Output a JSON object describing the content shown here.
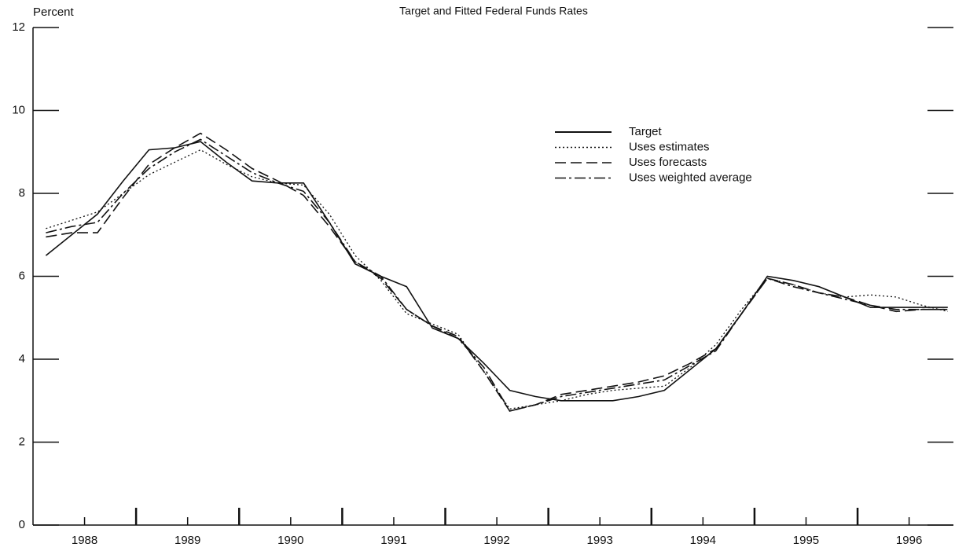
{
  "chart_data": {
    "type": "line",
    "title": "Target and Fitted Federal Funds Rates",
    "y_label": "Percent",
    "x": [
      1988.125,
      1988.375,
      1988.625,
      1988.875,
      1989.125,
      1989.375,
      1989.625,
      1989.875,
      1990.125,
      1990.375,
      1990.625,
      1990.875,
      1991.125,
      1991.375,
      1991.625,
      1991.875,
      1992.125,
      1992.375,
      1992.625,
      1992.875,
      1993.125,
      1993.375,
      1993.625,
      1993.875,
      1994.125,
      1994.375,
      1994.625,
      1994.875,
      1995.125,
      1995.375,
      1995.625,
      1995.875,
      1996.125,
      1996.375,
      1996.625,
      1996.875
    ],
    "series": [
      {
        "name": "Target",
        "color": "#111111",
        "dash": "solid",
        "values": [
          6.5,
          7.0,
          7.5,
          8.3,
          9.05,
          9.1,
          9.25,
          8.75,
          8.3,
          8.25,
          8.25,
          7.3,
          6.3,
          6.0,
          5.75,
          4.75,
          4.5,
          3.9,
          3.25,
          3.1,
          3.0,
          3.0,
          3.0,
          3.1,
          3.25,
          3.75,
          4.25,
          5.1,
          6.0,
          5.9,
          5.75,
          5.5,
          5.25,
          5.25,
          5.25,
          5.25
        ]
      },
      {
        "name": "Uses estimates",
        "color": "#111111",
        "dash": "dotted",
        "values": [
          7.15,
          7.35,
          7.55,
          8.0,
          8.45,
          8.75,
          9.05,
          8.7,
          8.4,
          8.25,
          8.2,
          7.5,
          6.5,
          5.9,
          5.1,
          4.85,
          4.6,
          3.7,
          2.8,
          2.9,
          3.0,
          3.15,
          3.25,
          3.3,
          3.35,
          3.8,
          4.35,
          5.2,
          5.95,
          5.8,
          5.6,
          5.5,
          5.55,
          5.5,
          5.3,
          5.15
        ]
      },
      {
        "name": "Uses forecasts",
        "color": "#111111",
        "dash": "dashed",
        "values": [
          6.95,
          7.05,
          7.05,
          7.9,
          8.7,
          9.1,
          9.45,
          9.05,
          8.6,
          8.3,
          7.95,
          7.2,
          6.35,
          5.95,
          5.2,
          4.8,
          4.55,
          3.7,
          2.75,
          2.9,
          3.15,
          3.25,
          3.35,
          3.45,
          3.6,
          3.9,
          4.25,
          5.1,
          5.95,
          5.8,
          5.6,
          5.5,
          5.3,
          5.15,
          5.2,
          5.2
        ]
      },
      {
        "name": "Uses weighted average",
        "color": "#111111",
        "dash": "dashdot",
        "values": [
          7.05,
          7.2,
          7.3,
          8.0,
          8.6,
          9.0,
          9.3,
          8.9,
          8.5,
          8.25,
          8.05,
          7.3,
          6.35,
          6.0,
          5.2,
          4.8,
          4.5,
          3.8,
          2.75,
          2.9,
          3.1,
          3.2,
          3.3,
          3.4,
          3.5,
          3.85,
          4.2,
          5.1,
          5.95,
          5.75,
          5.6,
          5.45,
          5.3,
          5.2,
          5.2,
          5.2
        ]
      }
    ],
    "xlim": [
      1988,
      1996.93
    ],
    "xticks": [
      {
        "value": 1988.5,
        "label": "1988"
      },
      {
        "value": 1989.5,
        "label": "1989"
      },
      {
        "value": 1990.5,
        "label": "1990"
      },
      {
        "value": 1991.5,
        "label": "1991"
      },
      {
        "value": 1992.5,
        "label": "1992"
      },
      {
        "value": 1993.5,
        "label": "1993"
      },
      {
        "value": 1994.5,
        "label": "1994"
      },
      {
        "value": 1995.5,
        "label": "1995"
      },
      {
        "value": 1996.5,
        "label": "1996"
      }
    ],
    "xticks_major": [
      1989,
      1990,
      1991,
      1992,
      1993,
      1994,
      1995,
      1996
    ],
    "ylim": [
      0,
      12
    ],
    "yticks": [
      0,
      2,
      4,
      6,
      8,
      10,
      12
    ],
    "legend": "upper right"
  }
}
